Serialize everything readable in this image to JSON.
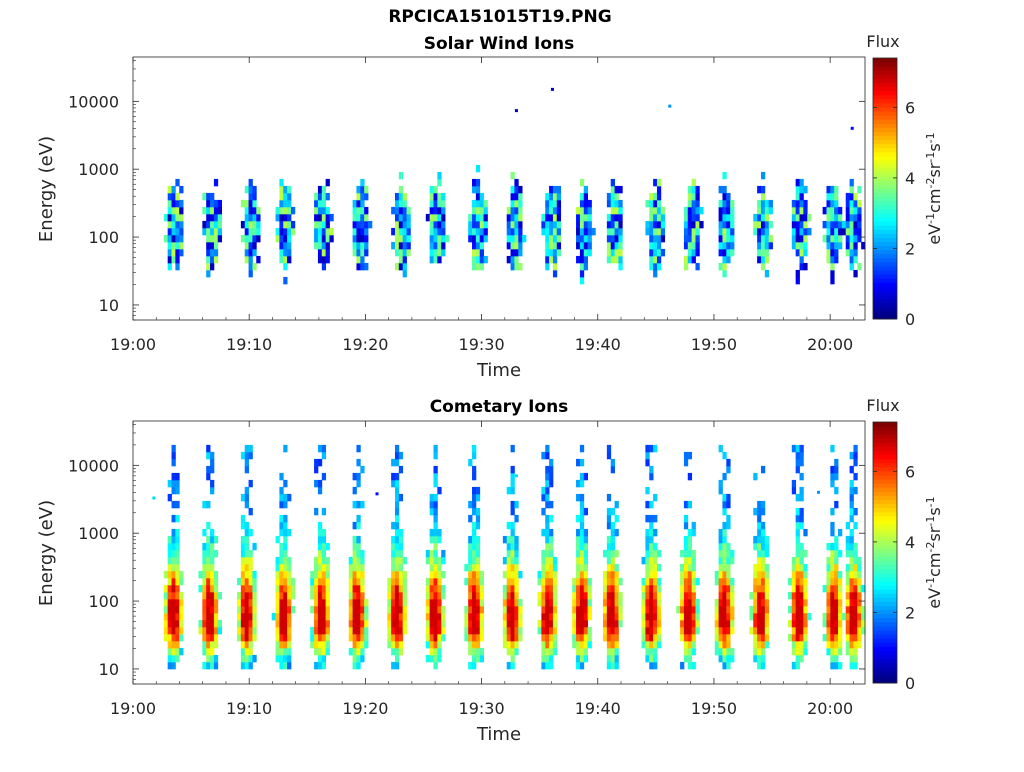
{
  "figure": {
    "title": "RPCICA151015T19.PNG"
  },
  "chart_data": [
    {
      "type": "heatmap",
      "title": "Solar Wind Ions",
      "xlabel": "Time",
      "ylabel": "Energy (eV)",
      "xlim": [
        "19:00",
        "20:03"
      ],
      "ylim": [
        6,
        45000
      ],
      "yscale": "log",
      "xticks": [
        "19:00",
        "19:10",
        "19:20",
        "19:30",
        "19:40",
        "19:50",
        "20:00"
      ],
      "yticks": [
        "10",
        "100",
        "1000",
        "10000"
      ],
      "colorbar": {
        "label_top": "Flux",
        "label": "eV-1cm-2sr-1s-1",
        "range": [
          0,
          7.4
        ],
        "ticks": [
          "0",
          "2",
          "4",
          "6"
        ],
        "colormap": "jet"
      },
      "bursts_minutes": [
        3.6,
        6.8,
        10.2,
        13.1,
        16.3,
        19.6,
        23.1,
        26.2,
        29.7,
        32.9,
        36.1,
        38.8,
        41.5,
        45.0,
        48.1,
        51.0,
        54.2,
        57.5,
        60.2,
        62.0
      ],
      "typical_flux": 2.8,
      "isolated_points": [
        {
          "t": 33.0,
          "e": 7300,
          "v": 0.5
        },
        {
          "t": 36.1,
          "e": 15000,
          "v": 0.6
        },
        {
          "t": 46.2,
          "e": 8500,
          "v": 2.0
        },
        {
          "t": 61.9,
          "e": 4000,
          "v": 1.0
        }
      ]
    },
    {
      "type": "heatmap",
      "title": "Cometary Ions",
      "xlabel": "Time",
      "ylabel": "Energy (eV)",
      "xlim": [
        "19:00",
        "20:03"
      ],
      "ylim": [
        6,
        45000
      ],
      "yscale": "log",
      "xticks": [
        "19:00",
        "19:10",
        "19:20",
        "19:30",
        "19:40",
        "19:50",
        "20:00"
      ],
      "yticks": [
        "10",
        "100",
        "1000",
        "10000"
      ],
      "colorbar": {
        "label_top": "Flux",
        "label": "eV-1cm-2sr-1s-1",
        "range": [
          0,
          7.4
        ],
        "ticks": [
          "0",
          "2",
          "4",
          "6"
        ],
        "colormap": "jet"
      },
      "bursts_minutes": [
        3.5,
        6.6,
        9.8,
        13.0,
        16.2,
        19.3,
        22.7,
        26.0,
        29.4,
        32.6,
        35.7,
        38.6,
        41.2,
        44.6,
        47.8,
        50.9,
        54.0,
        57.3,
        60.3,
        62.0
      ],
      "peak_energy_eV": 45,
      "typical_flux": 5.5,
      "isolated_points": [
        {
          "t": 1.8,
          "e": 3300,
          "v": 2.5
        },
        {
          "t": 21.0,
          "e": 3800,
          "v": 1.0
        },
        {
          "t": 33.0,
          "e": 7000,
          "v": 2.5
        },
        {
          "t": 59.0,
          "e": 4000,
          "v": 2.0
        }
      ]
    }
  ]
}
